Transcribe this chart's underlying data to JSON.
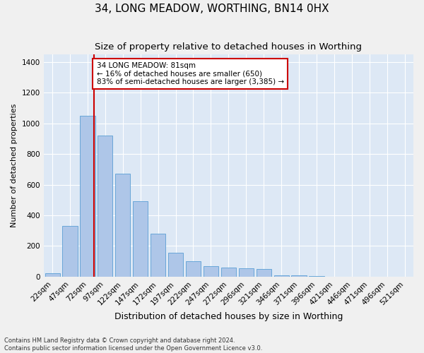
{
  "title": "34, LONG MEADOW, WORTHING, BN14 0HX",
  "subtitle": "Size of property relative to detached houses in Worthing",
  "xlabel": "Distribution of detached houses by size in Worthing",
  "ylabel": "Number of detached properties",
  "bar_categories": [
    "22sqm",
    "47sqm",
    "72sqm",
    "97sqm",
    "122sqm",
    "147sqm",
    "172sqm",
    "197sqm",
    "222sqm",
    "247sqm",
    "272sqm",
    "296sqm",
    "321sqm",
    "346sqm",
    "371sqm",
    "396sqm",
    "421sqm",
    "446sqm",
    "471sqm",
    "496sqm",
    "521sqm"
  ],
  "bar_values": [
    25,
    330,
    1050,
    920,
    670,
    490,
    280,
    155,
    100,
    70,
    60,
    55,
    50,
    10,
    10,
    5,
    0,
    0,
    0,
    0,
    0
  ],
  "bar_color": "#aec6e8",
  "bar_edge_color": "#5a9fd4",
  "property_line_color": "#cc0000",
  "annotation_text": "34 LONG MEADOW: 81sqm\n← 16% of detached houses are smaller (650)\n83% of semi-detached houses are larger (3,385) →",
  "annotation_box_color": "#ffffff",
  "annotation_box_edge": "#cc0000",
  "ylim": [
    0,
    1450
  ],
  "yticks": [
    0,
    200,
    400,
    600,
    800,
    1000,
    1200,
    1400
  ],
  "bg_color": "#dde8f5",
  "grid_color": "#ffffff",
  "fig_color": "#f0f0f0",
  "footnote": "Contains HM Land Registry data © Crown copyright and database right 2024.\nContains public sector information licensed under the Open Government Licence v3.0.",
  "title_fontsize": 11,
  "subtitle_fontsize": 9.5,
  "xlabel_fontsize": 9,
  "ylabel_fontsize": 8,
  "tick_fontsize": 7.5,
  "annot_fontsize": 7.5
}
